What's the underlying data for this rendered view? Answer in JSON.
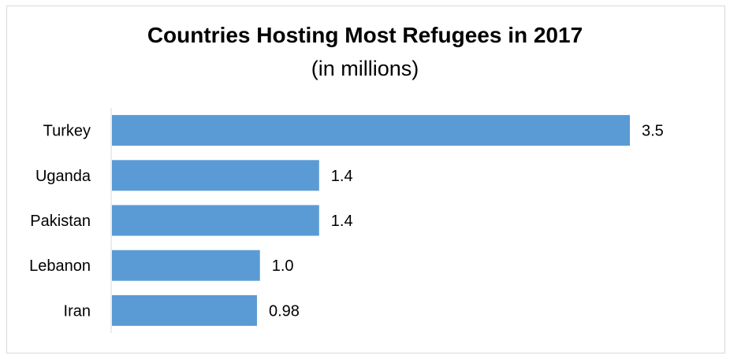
{
  "chart_data": {
    "type": "bar",
    "orientation": "horizontal",
    "title": "Countries Hosting Most Refugees in 2017",
    "subtitle": "(in millions)",
    "categories": [
      "Turkey",
      "Uganda",
      "Pakistan",
      "Lebanon",
      "Iran"
    ],
    "values": [
      3.5,
      1.4,
      1.4,
      1.0,
      0.98
    ],
    "value_labels": [
      "3.5",
      "1.4",
      "1.4",
      "1.0",
      "0.98"
    ],
    "xlabel": "",
    "ylabel": "",
    "xlim": [
      0,
      3.5
    ],
    "grid": false,
    "legend": "none",
    "bar_color": "#5b9bd5",
    "axis_color": "#d9d9d9"
  }
}
